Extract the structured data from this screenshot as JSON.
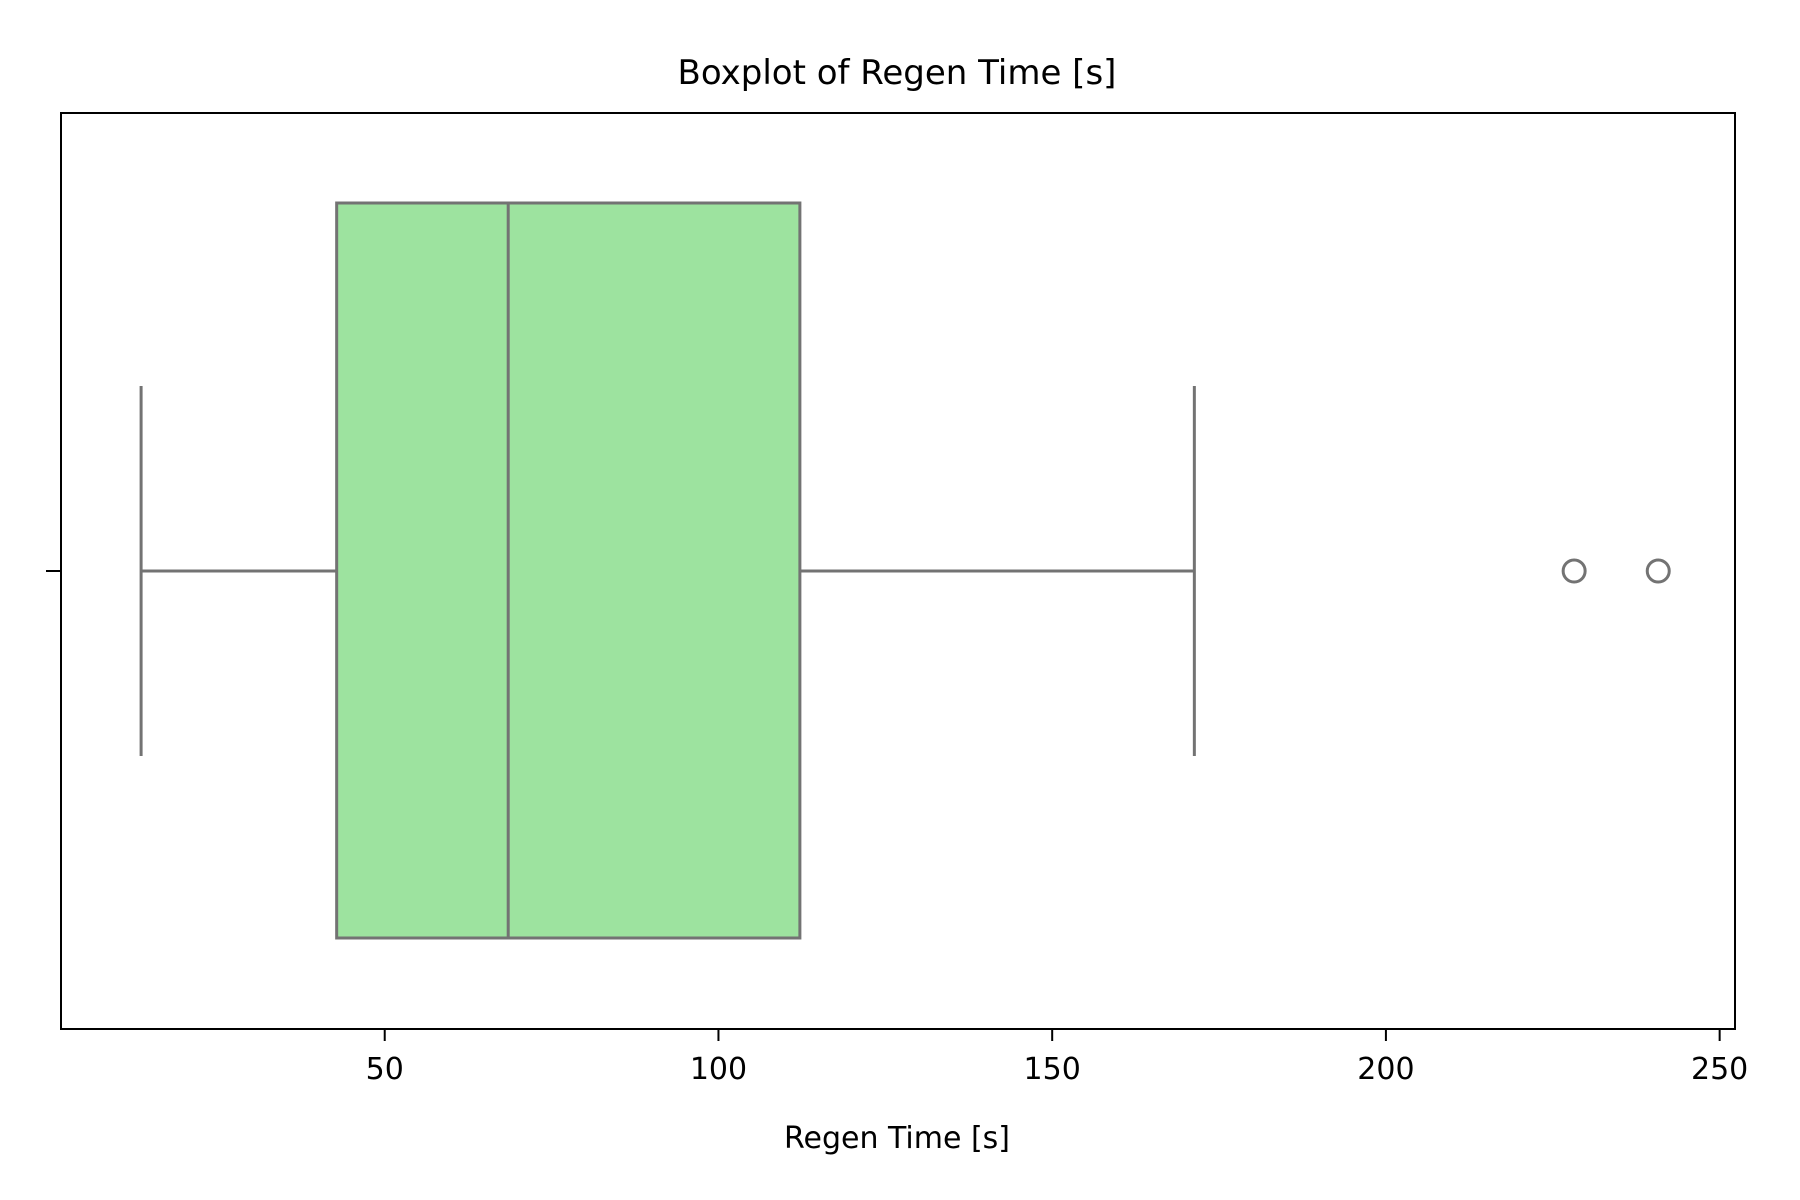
{
  "chart_data": {
    "type": "boxplot",
    "orientation": "horizontal",
    "title": "Boxplot of Regen Time [s]",
    "xlabel": "Regen Time [s]",
    "ylabel": "",
    "xlim": [
      1.5,
      252.3
    ],
    "xticks": [
      50,
      100,
      150,
      200,
      250
    ],
    "xtick_labels": [
      "50",
      "100",
      "150",
      "200",
      "250"
    ],
    "grid": false,
    "series": [
      {
        "min": 13.5,
        "q1": 42.8,
        "median": 68.5,
        "q3": 112.2,
        "max": 171.3,
        "outliers": [
          228.2,
          240.8
        ]
      }
    ],
    "colors": {
      "box_fill": "#9de39f",
      "line": "#737373",
      "axes": "#000000"
    }
  }
}
